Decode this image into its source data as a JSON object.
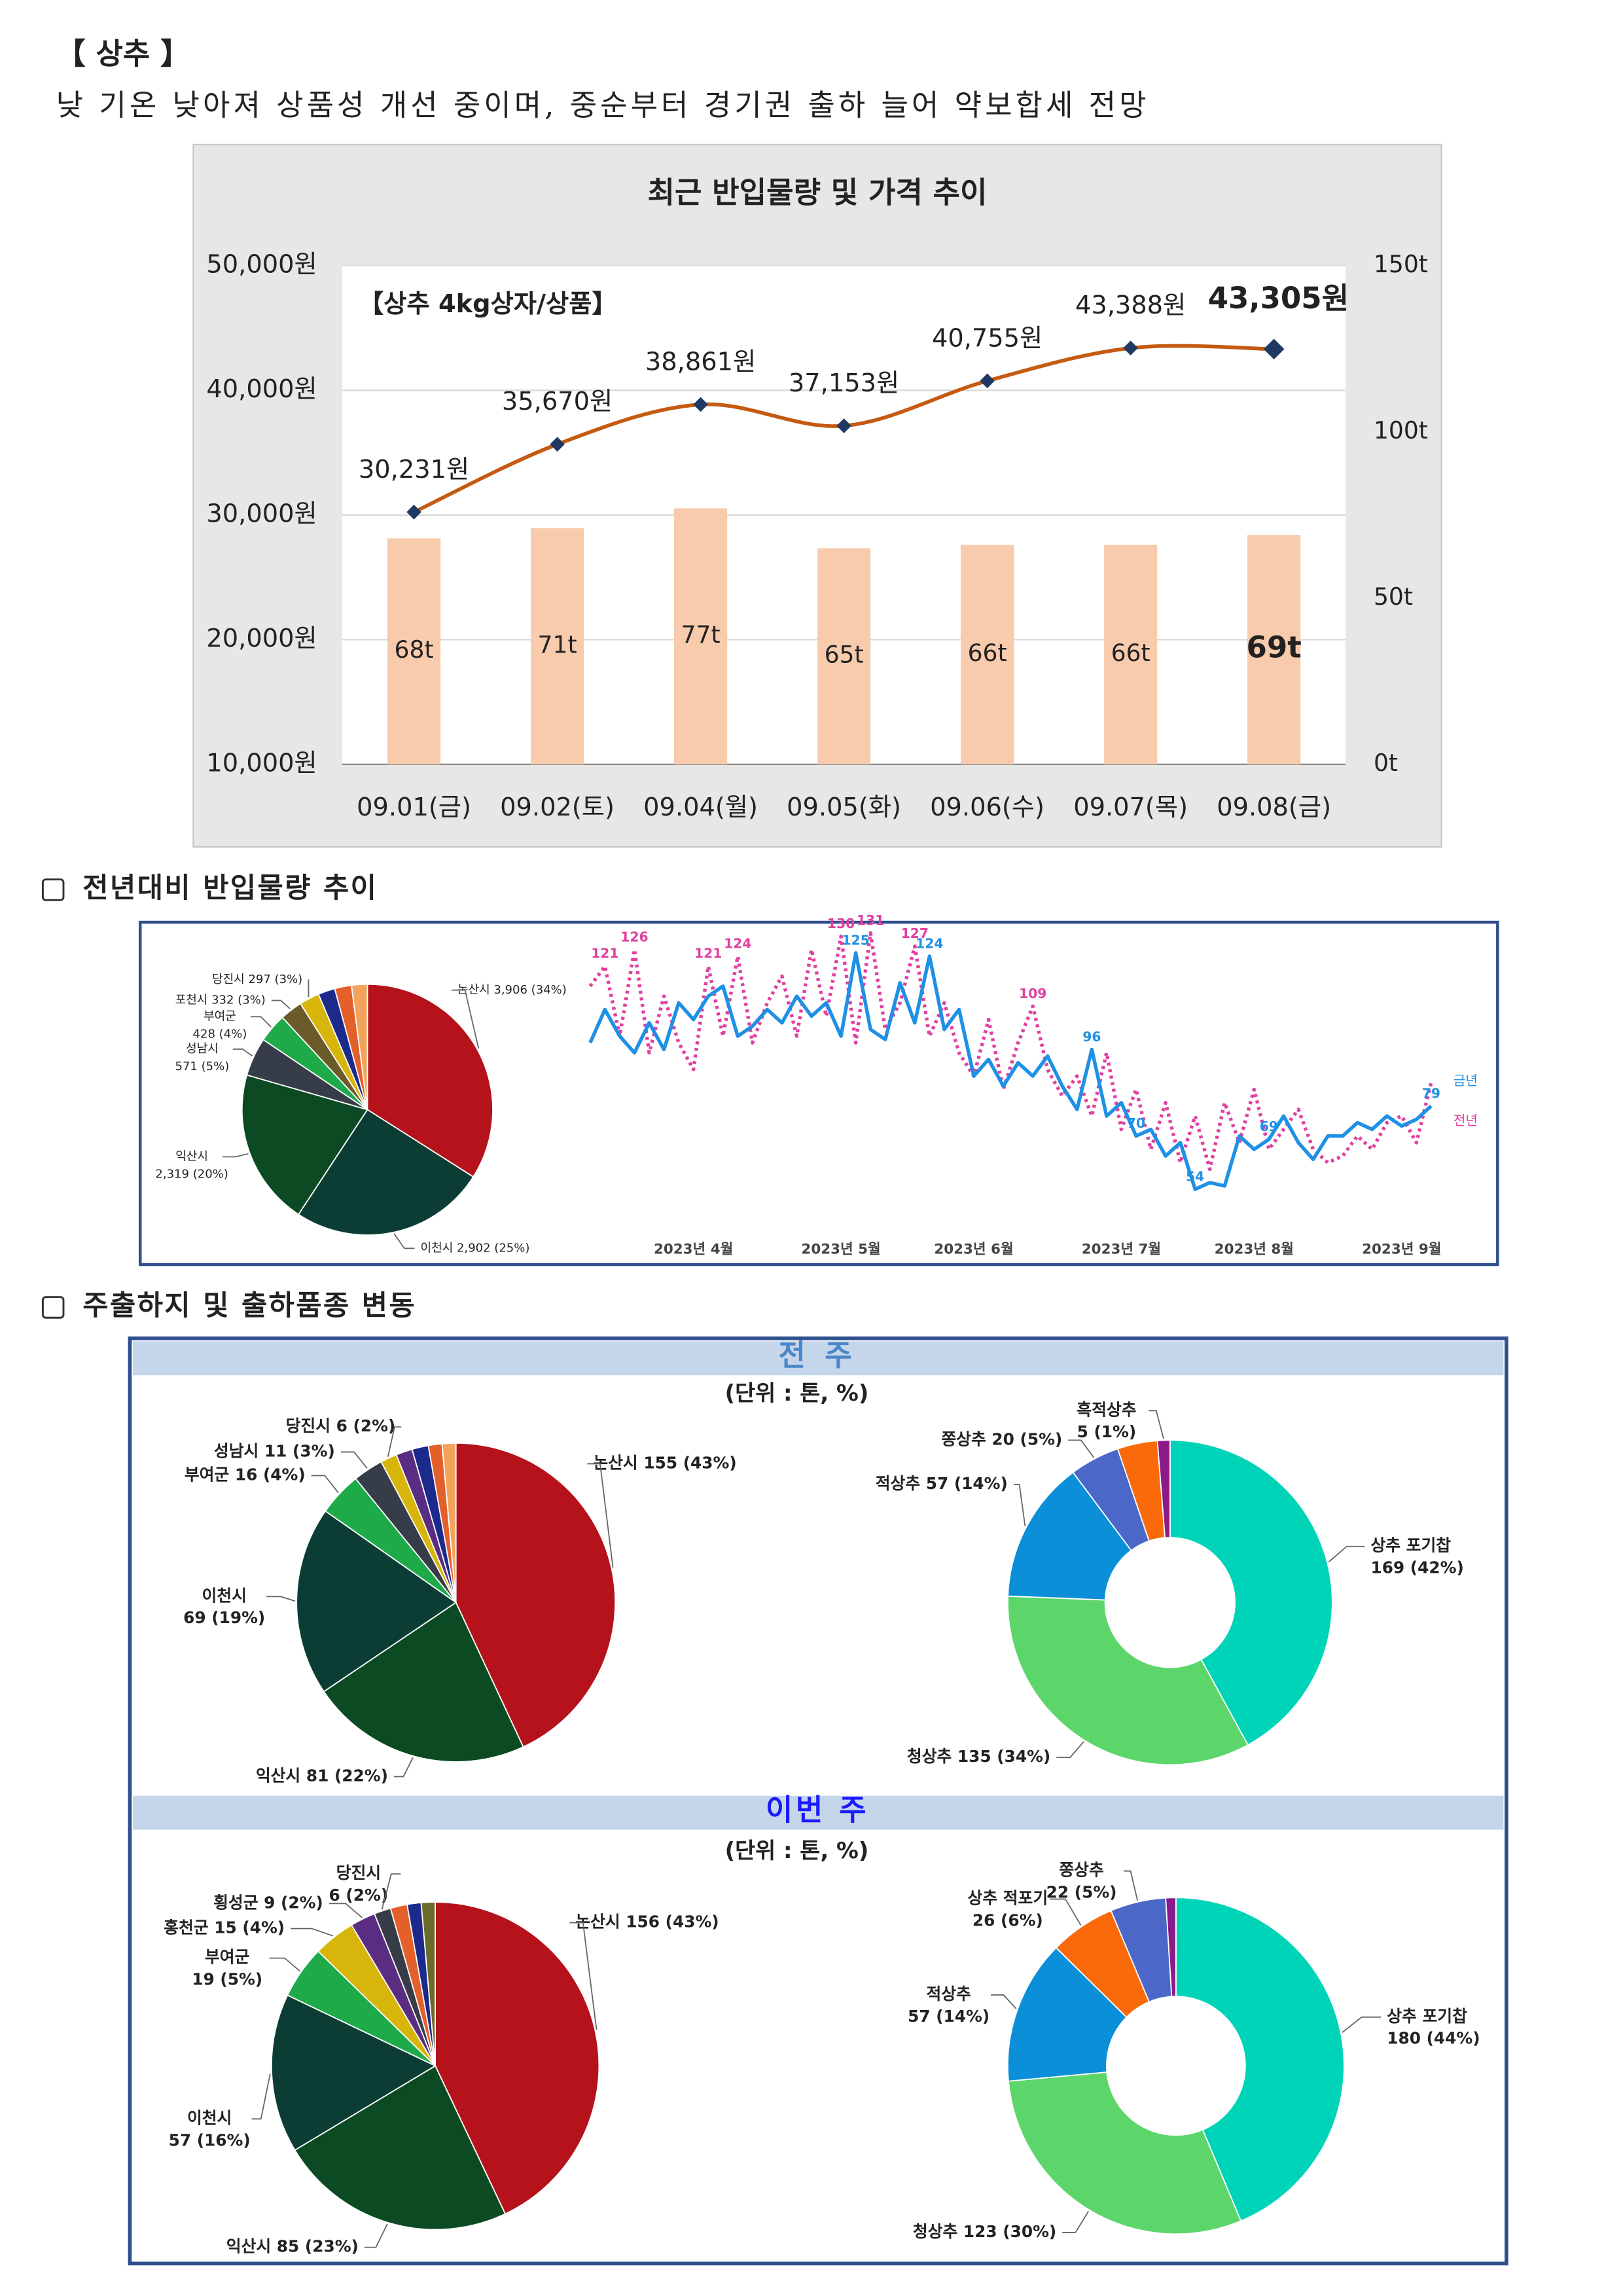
{
  "header": {
    "title": "【 상추 】",
    "summary": "낮 기온 낮아져 상품성 개선 중이며, 중순부터 경기권 출하 늘어 약보합세 전망"
  },
  "price_chart": {
    "type": "bar_line",
    "title": "최근 반입물량 및 가격 추이",
    "annotation": "【상추 4kg상자/상품】",
    "categories": [
      "09.01(금)",
      "09.02(토)",
      "09.04(월)",
      "09.05(화)",
      "09.06(수)",
      "09.07(목)",
      "09.08(금)"
    ],
    "series": [
      {
        "type": "bar",
        "axis": "y2",
        "color": "#f8cbad",
        "values": [
          68,
          71,
          77,
          65,
          66,
          66,
          69
        ],
        "value_labels": [
          "68t",
          "71t",
          "77t",
          "65t",
          "66t",
          "66t",
          "69t"
        ]
      },
      {
        "type": "line",
        "color": "#c55a11",
        "marker_color": "#1f3864",
        "values": [
          30231,
          35670,
          38861,
          37153,
          40755,
          43388,
          43305
        ],
        "value_labels": [
          "30,231원",
          "35,670원",
          "38,861원",
          "37,153원",
          "40,755원",
          "43,388원",
          "43,305원"
        ]
      }
    ],
    "ylim": [
      10000,
      50000
    ],
    "yticks": [
      {
        "value": 10000,
        "label": "10,000원"
      },
      {
        "value": 20000,
        "label": "20,000원"
      },
      {
        "value": 30000,
        "label": "30,000원"
      },
      {
        "value": 40000,
        "label": "40,000원"
      },
      {
        "value": 50000,
        "label": "50,000원"
      }
    ],
    "y2lim": [
      0,
      150
    ],
    "y2ticks": [
      {
        "value": 0,
        "label": "0t"
      },
      {
        "value": 50,
        "label": "50t"
      },
      {
        "value": 100,
        "label": "100t"
      },
      {
        "value": 150,
        "label": "150t"
      }
    ],
    "grid": true
  },
  "sections": [
    {
      "heading": "전년대비 반입물량 추이"
    },
    {
      "heading": "주출하지 및 출하품종 변동"
    }
  ],
  "yearly": {
    "pie": {
      "type": "pie",
      "values": [
        3906,
        2902,
        2319,
        571,
        428,
        332,
        297,
        250,
        250,
        233
      ],
      "colors": [
        "#b5121b",
        "#0b3d34",
        "#0c4a23",
        "#373d48",
        "#1faa4a",
        "#6b5a2a",
        "#d8b50a",
        "#1c2a8c",
        "#e4602a",
        "#f3a45c"
      ],
      "labels": [
        [
          "논산시 3,906 (34%)"
        ],
        [
          "이천시 2,902 (25%)"
        ],
        [
          "익산시",
          "2,319 (20%)"
        ],
        [
          "성남시",
          "571 (5%)"
        ],
        [
          "부여군",
          "428 (4%)"
        ],
        [
          "포천시 332 (3%)"
        ],
        [
          "당진시 297 (3%)"
        ],
        null,
        null,
        null
      ]
    },
    "line": {
      "type": "line",
      "categories": [
        null,
        null,
        null,
        null,
        null,
        null,
        null,
        "2023년 4월",
        null,
        null,
        null,
        null,
        null,
        null,
        null,
        null,
        null,
        "2023년 5월",
        null,
        null,
        null,
        null,
        null,
        null,
        null,
        null,
        "2023년 6월",
        null,
        null,
        null,
        null,
        null,
        null,
        null,
        null,
        null,
        "2023년 7월",
        null,
        null,
        null,
        null,
        null,
        null,
        null,
        null,
        "2023년 8월",
        null,
        null,
        null,
        null,
        null,
        null,
        null,
        null,
        null,
        "2023년 9월",
        null,
        null
      ],
      "ylim": [
        50,
        132
      ],
      "series": [
        {
          "name": "금년",
          "color": "#1e90e6",
          "style": "solid",
          "values": [
            98,
            108,
            100,
            95,
            104,
            96,
            110,
            105,
            112,
            115,
            100,
            103,
            108,
            104,
            112,
            106,
            110,
            100,
            125,
            102,
            99,
            116,
            104,
            124,
            102,
            108,
            88,
            93,
            85,
            92,
            88,
            94,
            85,
            78,
            96,
            76,
            80,
            70,
            72,
            64,
            68,
            54,
            56,
            55,
            70,
            66,
            69,
            76,
            68,
            63,
            70,
            70,
            74,
            72,
            76,
            73,
            75,
            79
          ],
          "value_labels": [
            null,
            null,
            null,
            null,
            null,
            null,
            null,
            null,
            null,
            null,
            null,
            null,
            null,
            null,
            null,
            null,
            null,
            null,
            "125",
            null,
            null,
            null,
            null,
            "124",
            null,
            null,
            null,
            null,
            null,
            null,
            null,
            null,
            null,
            null,
            "96",
            null,
            null,
            "70",
            null,
            null,
            null,
            "54",
            null,
            null,
            null,
            null,
            "69",
            null,
            null,
            null,
            null,
            null,
            null,
            null,
            null,
            null,
            null,
            "79"
          ]
        },
        {
          "name": "전년",
          "color": "#e040a0",
          "style": "dotted",
          "values": [
            115,
            121,
            100,
            126,
            95,
            112,
            98,
            90,
            121,
            100,
            124,
            98,
            110,
            118,
            100,
            126,
            106,
            130,
            98,
            131,
            102,
            110,
            127,
            100,
            110,
            95,
            88,
            105,
            84,
            98,
            109,
            90,
            82,
            88,
            76,
            95,
            72,
            84,
            66,
            80,
            62,
            76,
            60,
            80,
            68,
            84,
            66,
            72,
            78,
            66,
            62,
            64,
            70,
            66,
            74,
            76,
            68,
            86
          ],
          "value_labels": [
            null,
            "121",
            null,
            "126",
            null,
            null,
            null,
            null,
            "121",
            null,
            "124",
            null,
            null,
            null,
            null,
            null,
            null,
            "130",
            null,
            "131",
            null,
            null,
            "127",
            null,
            null,
            null,
            null,
            null,
            null,
            null,
            "109",
            null,
            null,
            null,
            null,
            null,
            null,
            null,
            null,
            null,
            null,
            null,
            null,
            null,
            null,
            null,
            null,
            null,
            null,
            null,
            null,
            null,
            null,
            null,
            null,
            null,
            null,
            null
          ]
        }
      ]
    }
  },
  "weekly": {
    "unit": "(단위 : 톤, %)",
    "weeks": [
      {
        "label": "전 주",
        "origin": {
          "type": "pie",
          "values": [
            155,
            81,
            69,
            16,
            11,
            6,
            6,
            6,
            5,
            5
          ],
          "colors": [
            "#b5121b",
            "#0c4a23",
            "#0b3d34",
            "#1faa4a",
            "#373d48",
            "#d8b50a",
            "#5b2d82",
            "#1c2a8c",
            "#e4602a",
            "#f3a45c"
          ],
          "labels": [
            [
              "논산시 155 (43%)"
            ],
            [
              "익산시 81 (22%)"
            ],
            [
              "이천시",
              "69 (19%)"
            ],
            [
              "부여군 16 (4%)"
            ],
            [
              "성남시 11 (3%)"
            ],
            [
              "당진시 6 (2%)"
            ],
            null,
            null,
            null,
            null
          ]
        },
        "variety": {
          "type": "donut",
          "values": [
            169,
            135,
            57,
            20,
            16,
            5
          ],
          "colors": [
            "#00d4b8",
            "#5cd66a",
            "#0a8fd8",
            "#4b68c8",
            "#fa6a0a",
            "#8b1a8b"
          ],
          "labels": [
            [
              "상추 포기찹",
              "169 (42%)"
            ],
            [
              "청상추 135 (34%)"
            ],
            [
              "적상추 57 (14%)"
            ],
            [
              "쫑상추 20 (5%)"
            ],
            null,
            [
              "흑적상추",
              "5 (1%)"
            ]
          ]
        }
      },
      {
        "label": "이번 주",
        "origin": {
          "type": "pie",
          "values": [
            156,
            85,
            57,
            19,
            15,
            9,
            6,
            6,
            5,
            5
          ],
          "colors": [
            "#b5121b",
            "#0c4a23",
            "#0b3d34",
            "#1faa4a",
            "#d8b50a",
            "#5b2d82",
            "#373d48",
            "#e4602a",
            "#1c2a8c",
            "#6b6b2a"
          ],
          "labels": [
            [
              "논산시 156 (43%)"
            ],
            [
              "익산시 85 (23%)"
            ],
            [
              "이천시",
              "57 (16%)"
            ],
            [
              "부여군",
              "19 (5%)"
            ],
            [
              "홍천군 15 (4%)"
            ],
            [
              "횡성군 9 (2%)"
            ],
            [
              "당진시",
              "6 (2%)"
            ],
            null,
            null,
            null
          ]
        },
        "variety": {
          "type": "donut",
          "values": [
            180,
            123,
            57,
            26,
            22,
            4
          ],
          "colors": [
            "#00d4b8",
            "#5cd66a",
            "#0a8fd8",
            "#fa6a0a",
            "#4b68c8",
            "#8b1a8b"
          ],
          "labels": [
            [
              "상추 포기찹",
              "180 (44%)"
            ],
            [
              "청상추 123 (30%)"
            ],
            [
              "적상추",
              "57 (14%)"
            ],
            [
              "상추 적포기",
              "26 (6%)"
            ],
            [
              "쫑상추",
              "22 (5%)"
            ],
            null
          ]
        }
      }
    ]
  }
}
